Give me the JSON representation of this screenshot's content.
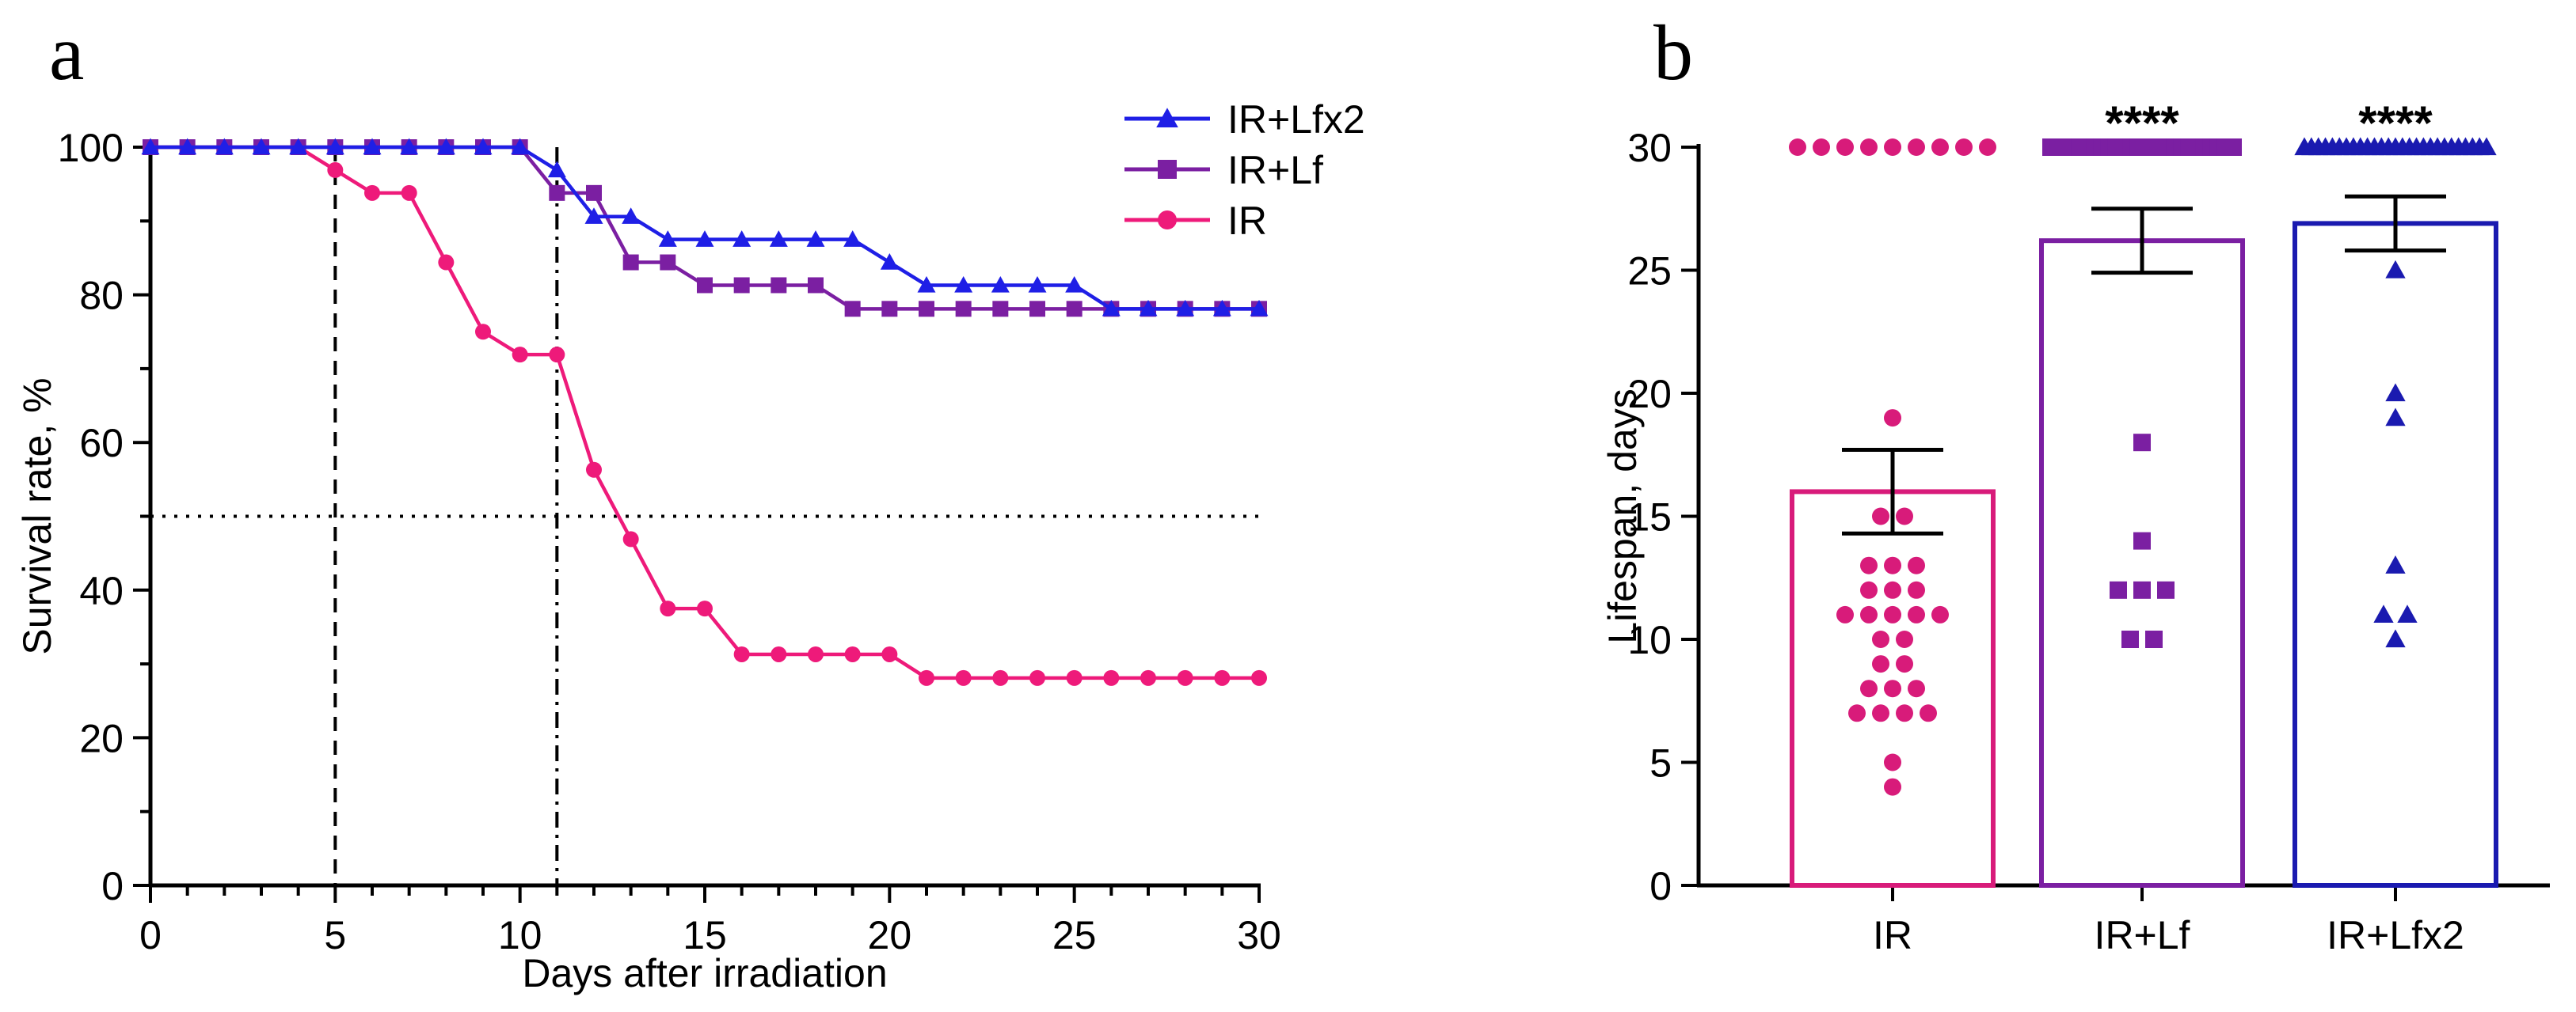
{
  "chart_data": [
    {
      "type": "line",
      "panel_label": "a",
      "title": "",
      "xlabel": "Days after irradiation",
      "ylabel": "Survival rate, %",
      "xlim": [
        0,
        30
      ],
      "ylim": [
        0,
        100
      ],
      "x_ticks": [
        0,
        5,
        10,
        15,
        20,
        25,
        30
      ],
      "y_ticks": [
        0,
        20,
        40,
        60,
        80,
        100
      ],
      "reference_lines": [
        {
          "orientation": "vertical",
          "value": 5,
          "style": "dashed"
        },
        {
          "orientation": "vertical",
          "value": 11,
          "style": "dashdot"
        },
        {
          "orientation": "horizontal",
          "value": 50,
          "style": "dotted"
        }
      ],
      "legend_position": "top-right",
      "series": [
        {
          "name": "IR+Lfx2",
          "color": "#1f1fe6",
          "marker": "triangle",
          "x": [
            0,
            1,
            2,
            3,
            4,
            5,
            6,
            7,
            8,
            9,
            10,
            11,
            12,
            13,
            14,
            15,
            16,
            17,
            18,
            19,
            20,
            21,
            22,
            23,
            24,
            25,
            26,
            27,
            28,
            29,
            30
          ],
          "y": [
            100,
            100,
            100,
            100,
            100,
            100,
            100,
            100,
            100,
            100,
            100,
            96.9,
            90.6,
            90.6,
            87.5,
            87.5,
            87.5,
            87.5,
            87.5,
            87.5,
            84.4,
            81.3,
            81.3,
            81.3,
            81.3,
            81.3,
            78.1,
            78.1,
            78.1,
            78.1,
            78.1
          ]
        },
        {
          "name": "IR+Lf",
          "color": "#7b1fa2",
          "marker": "square",
          "x": [
            0,
            1,
            2,
            3,
            4,
            5,
            6,
            7,
            8,
            9,
            10,
            11,
            12,
            13,
            14,
            15,
            16,
            17,
            18,
            19,
            20,
            21,
            22,
            23,
            24,
            25,
            26,
            27,
            28,
            29,
            30
          ],
          "y": [
            100,
            100,
            100,
            100,
            100,
            100,
            100,
            100,
            100,
            100,
            100,
            93.8,
            93.8,
            84.4,
            84.4,
            81.3,
            81.3,
            81.3,
            81.3,
            78.1,
            78.1,
            78.1,
            78.1,
            78.1,
            78.1,
            78.1,
            78.1,
            78.1,
            78.1,
            78.1,
            78.1
          ]
        },
        {
          "name": "IR",
          "color": "#ee1a7a",
          "marker": "circle",
          "x": [
            0,
            1,
            2,
            3,
            4,
            5,
            6,
            7,
            8,
            9,
            10,
            11,
            12,
            13,
            14,
            15,
            16,
            17,
            18,
            19,
            20,
            21,
            22,
            23,
            24,
            25,
            26,
            27,
            28,
            29,
            30
          ],
          "y": [
            100,
            100,
            100,
            100,
            100,
            96.9,
            93.8,
            93.8,
            84.4,
            75.0,
            71.9,
            71.9,
            56.3,
            46.9,
            37.5,
            37.5,
            31.3,
            31.3,
            31.3,
            31.3,
            31.3,
            28.1,
            28.1,
            28.1,
            28.1,
            28.1,
            28.1,
            28.1,
            28.1,
            28.1,
            28.1
          ]
        }
      ]
    },
    {
      "type": "bar",
      "panel_label": "b",
      "title": "",
      "xlabel": "",
      "ylabel": "Lifespan, days",
      "ylim": [
        0,
        30
      ],
      "y_ticks": [
        0,
        5,
        10,
        15,
        20,
        25,
        30
      ],
      "categories": [
        "IR",
        "IR+Lf",
        "IR+Lfx2"
      ],
      "values": [
        16.0,
        26.2,
        26.9
      ],
      "sem": [
        1.7,
        1.3,
        1.1
      ],
      "colors": [
        "#d81b7a",
        "#7b1fa2",
        "#1a1ab0"
      ],
      "markers": [
        "circle",
        "square",
        "triangle"
      ],
      "significance": [
        "",
        "****",
        "****"
      ],
      "points": [
        [
          30,
          30,
          30,
          30,
          30,
          30,
          30,
          30,
          30,
          19,
          15,
          15,
          13,
          13,
          13,
          12,
          12,
          12,
          11,
          11,
          11,
          11,
          11,
          10,
          10,
          9,
          9,
          8,
          8,
          8,
          7,
          7,
          7,
          7,
          5,
          4
        ],
        [
          30,
          30,
          30,
          30,
          30,
          30,
          30,
          30,
          30,
          30,
          30,
          30,
          30,
          30,
          30,
          30,
          30,
          30,
          30,
          30,
          30,
          30,
          30,
          30,
          30,
          30,
          18,
          14,
          12,
          12,
          12,
          10,
          10
        ],
        [
          30,
          30,
          30,
          30,
          30,
          30,
          30,
          30,
          30,
          30,
          30,
          30,
          30,
          30,
          30,
          30,
          30,
          30,
          30,
          30,
          30,
          30,
          30,
          30,
          30,
          30,
          30,
          25,
          20,
          19,
          13,
          11,
          11,
          10
        ]
      ]
    }
  ]
}
